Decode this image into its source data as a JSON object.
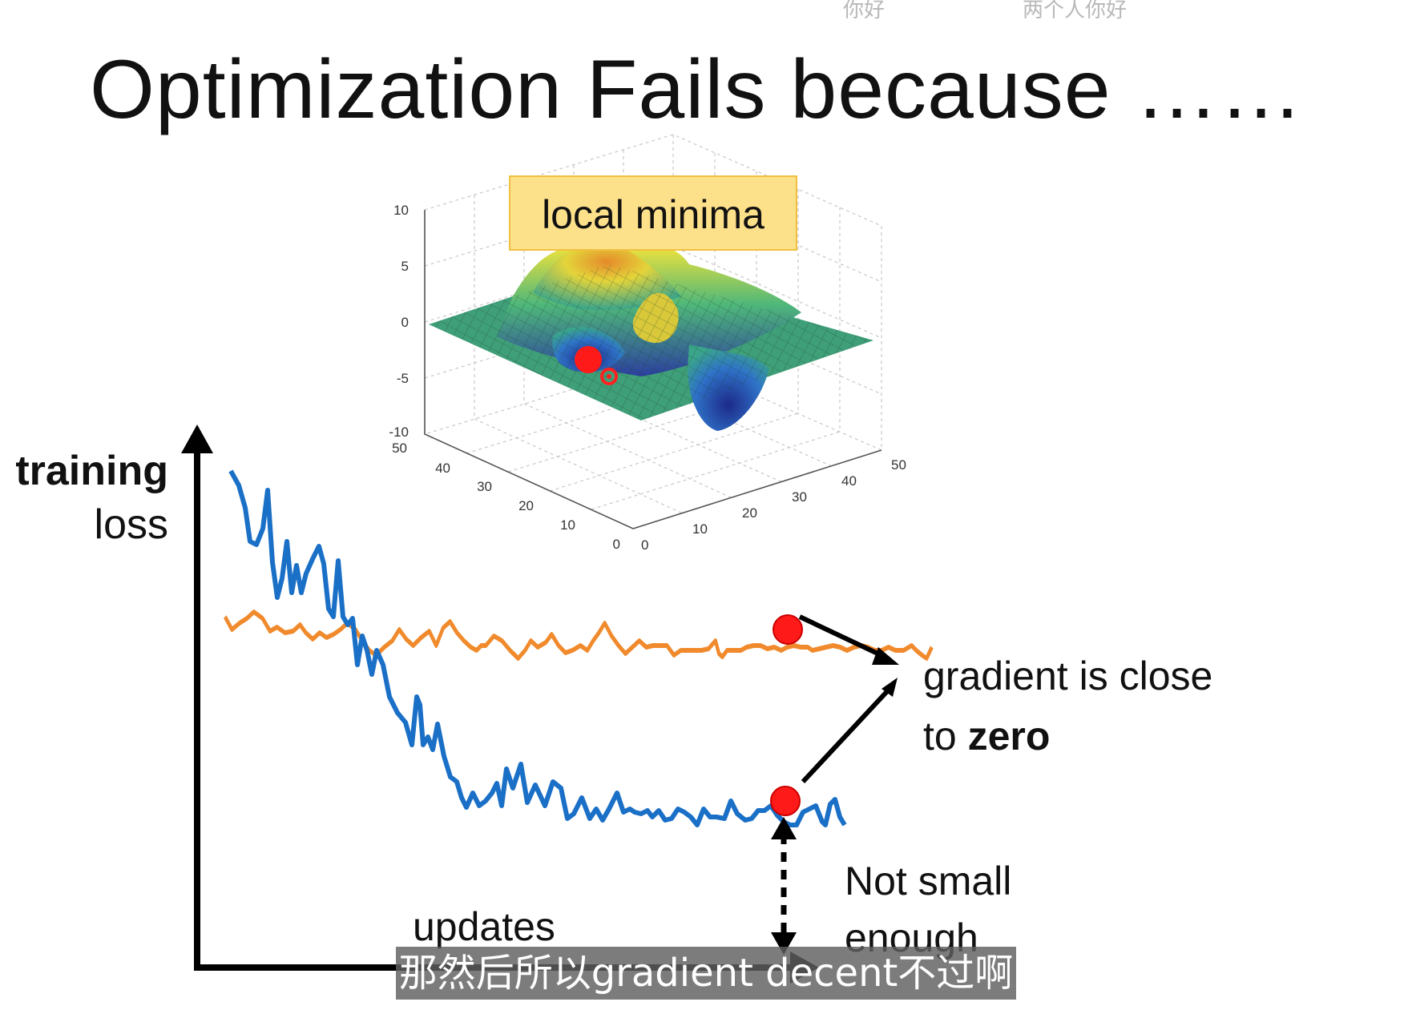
{
  "top_bar": {
    "left_text": "你好",
    "right_text": "两个人你好"
  },
  "slide": {
    "title": "Optimization Fails because ……",
    "callout": "local minima",
    "y_label_bold": "training",
    "y_label_rest": "loss",
    "x_label": "updates",
    "gradient_text_line1": "gradient is close",
    "gradient_text_to": "to ",
    "gradient_text_bold": "zero",
    "not_small_line1": "Not small",
    "not_small_line2": "enough"
  },
  "surface_plot": {
    "z_ticks": [
      "10",
      "5",
      "0",
      "-5",
      "-10"
    ],
    "left_axis_ticks": [
      "50",
      "40",
      "30",
      "20",
      "10",
      "0"
    ],
    "right_axis_ticks": [
      "0",
      "10",
      "20",
      "30",
      "40",
      "50"
    ]
  },
  "subtitle": "那然后所以gradient decent不过啊",
  "colors": {
    "orange_curve": "#f08a2c",
    "blue_curve": "#1a6fc6",
    "marker": "#ff0000",
    "callout_bg": "#fde08a",
    "callout_border": "#f0c040"
  }
}
